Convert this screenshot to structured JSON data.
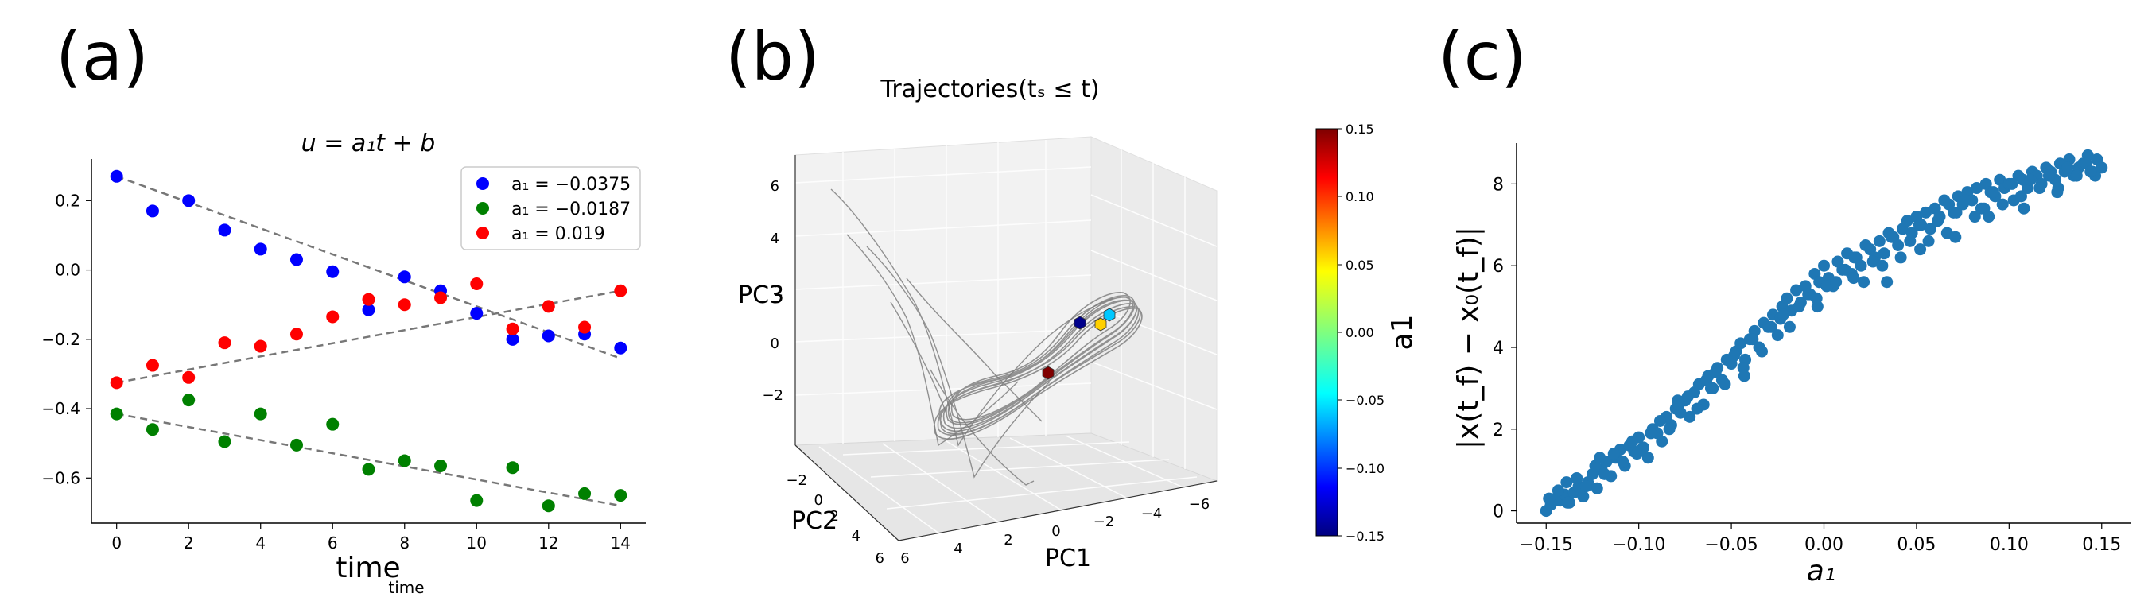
{
  "panel_labels": [
    "(a)",
    "(b)",
    "(c)"
  ],
  "chart_data": [
    {
      "type": "scatter",
      "panel": "(a)",
      "title": "u = a₁t + b",
      "xlabel": "time",
      "xlabel_sub": "time",
      "ylabel": "",
      "xlim": [
        -0.7,
        14.7
      ],
      "ylim": [
        -0.73,
        0.32
      ],
      "xticks": [
        0,
        2,
        4,
        6,
        8,
        10,
        12,
        14
      ],
      "yticks": [
        -0.6,
        -0.4,
        -0.2,
        0.0,
        0.2
      ],
      "ytick_labels": [
        "−0.6",
        "−0.4",
        "−0.2",
        "0.0",
        "0.2"
      ],
      "legend_position": "top-right",
      "series": [
        {
          "name": "a₁ = −0.0375",
          "color": "#0000ff",
          "x": [
            0,
            1,
            2,
            3,
            4,
            5,
            6,
            7,
            8,
            9,
            10,
            11,
            12,
            13,
            14
          ],
          "y": [
            0.27,
            0.17,
            0.2,
            0.115,
            0.06,
            0.03,
            -0.005,
            -0.115,
            -0.02,
            -0.06,
            -0.125,
            -0.2,
            -0.19,
            -0.185,
            -0.225
          ],
          "fit": [
            0.27,
            -0.255
          ]
        },
        {
          "name": "a₁ = −0.0187",
          "color": "#008000",
          "x": [
            0,
            1,
            2,
            3,
            4,
            5,
            6,
            7,
            8,
            9,
            10,
            11,
            12,
            13,
            14
          ],
          "y": [
            -0.415,
            -0.46,
            -0.375,
            -0.495,
            -0.415,
            -0.505,
            -0.445,
            -0.575,
            -0.55,
            -0.565,
            -0.665,
            -0.57,
            -0.68,
            -0.645,
            -0.65
          ],
          "fit": [
            -0.415,
            -0.68
          ]
        },
        {
          "name": "a₁ = 0.019",
          "color": "#ff0000",
          "x": [
            0,
            1,
            2,
            3,
            4,
            5,
            6,
            7,
            8,
            9,
            10,
            11,
            12,
            13,
            14
          ],
          "y": [
            -0.325,
            -0.275,
            -0.31,
            -0.21,
            -0.22,
            -0.185,
            -0.135,
            -0.085,
            -0.1,
            -0.08,
            -0.04,
            -0.17,
            -0.105,
            -0.165,
            -0.06
          ],
          "fit": [
            -0.325,
            -0.06
          ]
        }
      ]
    },
    {
      "type": "line",
      "panel": "(b)",
      "title": "Trajectories(tₛ ≤ t)",
      "axis_labels": {
        "x": "PC1",
        "y": "PC2",
        "z": "PC3"
      },
      "x_ticks": [
        "6",
        "4",
        "2",
        "0",
        "−2",
        "−4",
        "−6"
      ],
      "y_ticks": [
        "−2",
        "0",
        "2",
        "4",
        "6"
      ],
      "z_ticks": [
        "6",
        "4",
        "2",
        "0",
        "−2"
      ],
      "colorbar": {
        "label": "a1",
        "range": [
          -0.15,
          0.15
        ],
        "ticks": [
          "0.15",
          "0.10",
          "0.05",
          "0.00",
          "−0.05",
          "−0.10",
          "−0.15"
        ]
      },
      "markers": [
        {
          "a1": -0.15,
          "color": "#00008b"
        },
        {
          "a1": -0.03,
          "color": "#00c8ff"
        },
        {
          "a1": 0.05,
          "color": "#ffd000"
        },
        {
          "a1": 0.15,
          "color": "#800000"
        }
      ]
    },
    {
      "type": "scatter",
      "panel": "(c)",
      "title": "",
      "xlabel": "a₁",
      "ylabel": "|x(t_f) − x₀(t_f)|",
      "xlim": [
        -0.166,
        0.166
      ],
      "ylim": [
        -0.3,
        9.0
      ],
      "xticks": [
        -0.15,
        -0.1,
        -0.05,
        0.0,
        0.05,
        0.1,
        0.15
      ],
      "xtick_labels": [
        "−0.15",
        "−0.10",
        "−0.05",
        "0.00",
        "0.05",
        "0.10",
        "0.15"
      ],
      "yticks": [
        0,
        2,
        4,
        6,
        8
      ],
      "color": "#1f77b4",
      "x": [
        -0.15,
        -0.1475,
        -0.145,
        -0.1425,
        -0.14,
        -0.1375,
        -0.135,
        -0.1325,
        -0.13,
        -0.1275,
        -0.125,
        -0.1225,
        -0.12,
        -0.1175,
        -0.115,
        -0.1125,
        -0.11,
        -0.1075,
        -0.105,
        -0.1025,
        -0.1,
        -0.0975,
        -0.095,
        -0.0925,
        -0.09,
        -0.0875,
        -0.085,
        -0.0825,
        -0.08,
        -0.0775,
        -0.075,
        -0.0725,
        -0.07,
        -0.0675,
        -0.065,
        -0.0625,
        -0.06,
        -0.0575,
        -0.055,
        -0.0525,
        -0.05,
        -0.0475,
        -0.045,
        -0.0425,
        -0.04,
        -0.0375,
        -0.035,
        -0.0325,
        -0.03,
        -0.0275,
        -0.025,
        -0.0225,
        -0.02,
        -0.0175,
        -0.015,
        -0.0125,
        -0.01,
        -0.0075,
        -0.005,
        -0.0025,
        0.0,
        0.0025,
        0.005,
        0.0075,
        0.01,
        0.0125,
        0.015,
        0.0175,
        0.02,
        0.0225,
        0.025,
        0.0275,
        0.03,
        0.0325,
        0.035,
        0.0375,
        0.04,
        0.0425,
        0.045,
        0.0475,
        0.05,
        0.0525,
        0.055,
        0.0575,
        0.06,
        0.0625,
        0.065,
        0.0675,
        0.07,
        0.0725,
        0.075,
        0.0775,
        0.08,
        0.0825,
        0.085,
        0.0875,
        0.09,
        0.0925,
        0.095,
        0.0975,
        0.1,
        0.1025,
        0.105,
        0.1075,
        0.11,
        0.1125,
        0.115,
        0.1175,
        0.12,
        0.1225,
        0.125,
        0.1275,
        0.13,
        0.1325,
        0.135,
        0.1375,
        0.14,
        0.1425,
        0.145,
        0.1475,
        0.15,
        -0.1485,
        -0.1435,
        -0.1385,
        -0.1335,
        -0.1285,
        -0.1235,
        -0.1185,
        -0.1135,
        -0.1085,
        -0.1035,
        -0.0985,
        -0.0935,
        -0.0885,
        -0.0835,
        -0.0785,
        -0.0735,
        -0.0685,
        -0.0635,
        -0.0585,
        -0.0535,
        -0.0485,
        -0.0435,
        -0.0385,
        -0.0335,
        -0.0285,
        -0.0235,
        -0.0185,
        -0.0135,
        -0.0085,
        -0.0035,
        0.0015,
        0.0065,
        0.0115,
        0.0165,
        0.0215,
        0.0265,
        0.0315,
        0.0365,
        0.0415,
        0.0465,
        0.0515,
        0.0565,
        0.0615,
        0.0665,
        0.0715,
        0.0765,
        0.0815,
        0.0865,
        0.0915,
        0.0965,
        0.1015,
        0.1065,
        0.1115,
        0.1165,
        0.1215,
        0.1265,
        0.1315,
        0.1365,
        0.1415,
        0.1465,
        -0.139,
        -0.121,
        -0.101,
        -0.079,
        -0.061,
        -0.043,
        -0.022,
        -0.004,
        0.016,
        0.034,
        0.052,
        0.071,
        0.089,
        0.108,
        0.126,
        0.144
      ],
      "y": [
        0.0,
        0.15,
        0.3,
        0.25,
        0.4,
        0.2,
        0.45,
        0.6,
        0.35,
        0.7,
        0.9,
        0.55,
        1.0,
        1.2,
        0.85,
        1.3,
        1.5,
        1.1,
        1.6,
        1.45,
        1.8,
        1.55,
        1.3,
        2.0,
        1.9,
        1.7,
        2.3,
        2.1,
        2.5,
        2.4,
        2.7,
        2.3,
        2.9,
        3.1,
        2.6,
        3.3,
        3.0,
        3.5,
        3.2,
        3.7,
        3.6,
        3.9,
        4.1,
        3.7,
        4.2,
        4.4,
        4.0,
        4.6,
        4.5,
        4.8,
        4.3,
        5.0,
        5.2,
        4.9,
        5.4,
        5.1,
        5.5,
        5.3,
        5.8,
        5.6,
        6.0,
        5.7,
        5.5,
        6.1,
        5.9,
        6.3,
        5.8,
        6.2,
        6.0,
        6.5,
        6.4,
        6.2,
        6.6,
        6.3,
        6.8,
        6.7,
        6.5,
        6.9,
        7.1,
        6.8,
        7.2,
        7.0,
        7.3,
        6.9,
        7.4,
        7.2,
        7.6,
        7.5,
        7.3,
        7.7,
        7.5,
        7.8,
        7.6,
        7.9,
        7.4,
        8.0,
        7.8,
        7.7,
        8.1,
        7.9,
        8.0,
        7.6,
        8.2,
        8.1,
        7.9,
        8.3,
        8.2,
        8.0,
        8.4,
        8.3,
        8.1,
        8.5,
        8.3,
        8.6,
        8.2,
        8.4,
        8.5,
        8.7,
        8.3,
        8.6,
        8.4,
        0.3,
        0.5,
        0.2,
        0.8,
        0.6,
        1.1,
        0.9,
        1.4,
        1.2,
        1.7,
        1.5,
        1.9,
        2.2,
        2.0,
        2.6,
        2.8,
        2.5,
        3.2,
        3.4,
        3.1,
        3.8,
        3.5,
        4.2,
        3.9,
        4.5,
        4.7,
        4.5,
        5.0,
        5.3,
        5.0,
        5.5,
        5.6,
        5.9,
        6.2,
        5.6,
        6.1,
        6.0,
        6.7,
        6.2,
        6.6,
        7.0,
        6.6,
        7.1,
        6.8,
        7.3,
        7.6,
        7.2,
        7.4,
        7.8,
        7.5,
        8.0,
        7.7,
        8.1,
        7.9,
        8.2,
        7.9,
        8.4,
        8.2,
        8.5,
        8.2,
        0.7,
        1.3,
        1.4,
        2.7,
        3.0,
        3.3,
        4.8,
        5.2,
        5.7,
        5.6,
        6.4,
        6.7,
        7.2,
        7.4,
        7.8,
        8.3
      ]
    }
  ]
}
